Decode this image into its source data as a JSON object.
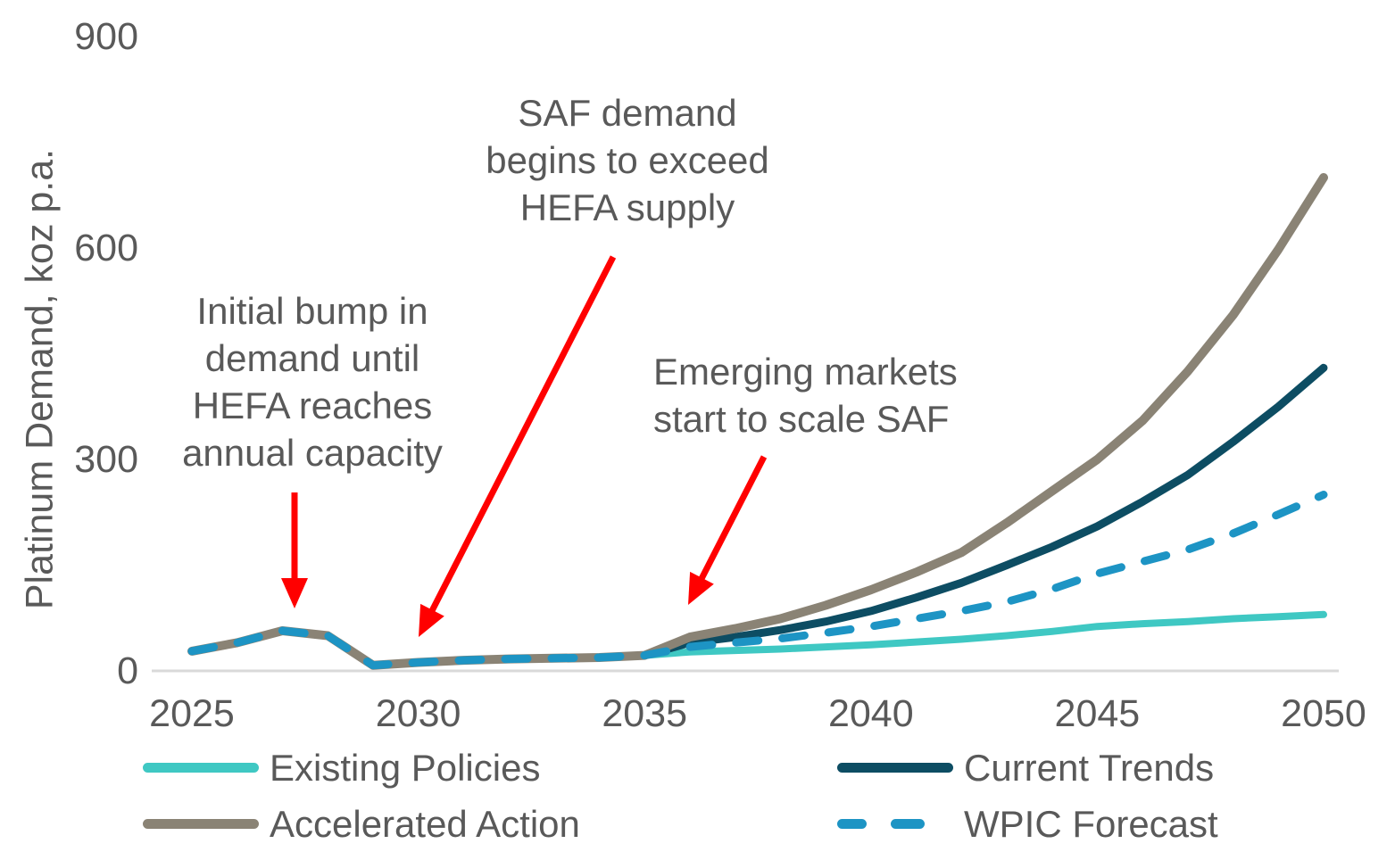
{
  "chart_data": {
    "type": "line",
    "title": "",
    "xlabel": "",
    "ylabel": "Platinum Demand, koz p.a.",
    "x": [
      2025,
      2026,
      2027,
      2028,
      2029,
      2030,
      2031,
      2032,
      2033,
      2034,
      2035,
      2036,
      2037,
      2038,
      2039,
      2040,
      2041,
      2042,
      2043,
      2044,
      2045,
      2046,
      2047,
      2048,
      2049,
      2050
    ],
    "x_ticks": [
      2025,
      2030,
      2035,
      2040,
      2045,
      2050
    ],
    "y_ticks": [
      0,
      300,
      600,
      900
    ],
    "xlim": [
      2025,
      2050
    ],
    "ylim": [
      0,
      900
    ],
    "grid": false,
    "legend_position": "bottom-two-columns",
    "series": [
      {
        "id": "existing_policies",
        "name": "Existing Policies",
        "color": "#3FC8C3",
        "style": "solid",
        "values": [
          28,
          40,
          57,
          50,
          8,
          12,
          15,
          17,
          18,
          19,
          22,
          27,
          29,
          31,
          34,
          37,
          41,
          45,
          50,
          56,
          63,
          67,
          70,
          74,
          77,
          80
        ]
      },
      {
        "id": "accelerated_action",
        "name": "Accelerated Action",
        "color": "#8A8375",
        "style": "solid",
        "values": [
          28,
          40,
          57,
          50,
          8,
          12,
          15,
          17,
          18,
          19,
          22,
          48,
          60,
          74,
          93,
          115,
          140,
          168,
          210,
          255,
          300,
          355,
          425,
          505,
          598,
          700
        ]
      },
      {
        "id": "current_trends",
        "name": "Current Trends",
        "color": "#0D4D63",
        "style": "solid",
        "values": [
          28,
          40,
          57,
          50,
          8,
          12,
          15,
          17,
          18,
          19,
          22,
          40,
          48,
          58,
          70,
          85,
          104,
          125,
          150,
          176,
          205,
          240,
          278,
          325,
          375,
          430
        ]
      },
      {
        "id": "wpic_forecast",
        "name": "WPIC Forecast",
        "color": "#1D94C4",
        "style": "dashed",
        "values": [
          28,
          40,
          57,
          50,
          8,
          12,
          15,
          17,
          18,
          19,
          22,
          34,
          40,
          46,
          54,
          63,
          74,
          85,
          98,
          116,
          138,
          155,
          172,
          195,
          222,
          250
        ]
      }
    ],
    "annotations": [
      {
        "id": "saf-demand",
        "text": "SAF demand\nbegins to exceed\nHEFA supply",
        "arrow": {
          "from": [
            687,
            288
          ],
          "to": [
            469,
            714
          ]
        }
      },
      {
        "id": "initial-bump",
        "text": "Initial bump in\ndemand until\nHEFA reaches\nannual capacity",
        "arrow": {
          "from": [
            330,
            552
          ],
          "to": [
            330,
            682
          ]
        }
      },
      {
        "id": "emerging-markets",
        "text": "Emerging markets\nstart to scale SAF",
        "arrow": {
          "from": [
            856,
            512
          ],
          "to": [
            771,
            678
          ]
        }
      }
    ]
  },
  "colors": {
    "text": "#595959",
    "axis_line": "#D9D9D9",
    "arrow": "#FF0000"
  },
  "legend": {
    "columns": [
      [
        "existing_policies",
        "accelerated_action"
      ],
      [
        "current_trends",
        "wpic_forecast"
      ]
    ]
  }
}
